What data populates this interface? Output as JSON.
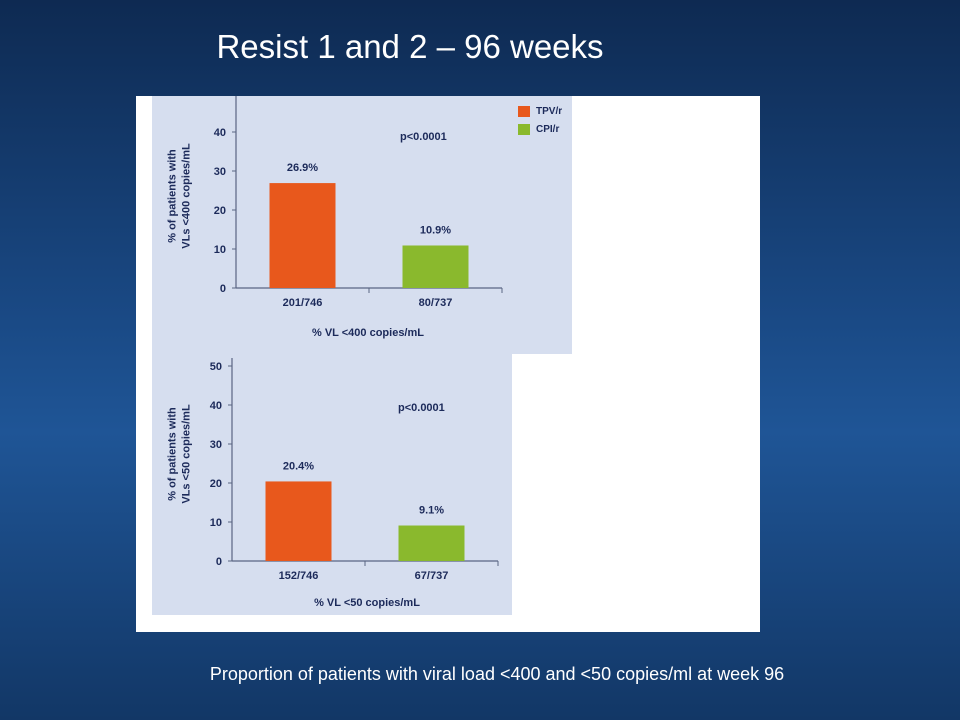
{
  "slide": {
    "title": "Resist 1 and 2 – 96 weeks",
    "caption": "Proportion of patients with viral load <400 and <50 copies/ml at week 96"
  },
  "colors": {
    "background": "#163f74",
    "chart_bg": "#d6deef",
    "tpv": "#e8581c",
    "cpi": "#8ab92d",
    "text_dark": "#1c2a5a"
  },
  "chart_data": [
    {
      "type": "bar",
      "categories": [
        "201/746",
        "80/737"
      ],
      "values": [
        26.9,
        10.9
      ],
      "value_labels": [
        "26.9%",
        "10.9%"
      ],
      "series_names": [
        "TPV/r",
        "CPI/r"
      ],
      "bar_colors": [
        "#e8581c",
        "#8ab92d"
      ],
      "ylabel_lines": [
        "% of patients with",
        "VLs <400 copies/mL"
      ],
      "xlabel": "% VL <400 copies/mL",
      "pvalue": "p<0.0001",
      "yticks": [
        0,
        10,
        20,
        30,
        40
      ],
      "ylim": [
        0,
        50
      ],
      "legend": [
        {
          "label": "TPV/r",
          "color": "#e8581c"
        },
        {
          "label": "CPI/r",
          "color": "#8ab92d"
        }
      ],
      "legend_position": "top-right",
      "grid": false
    },
    {
      "type": "bar",
      "categories": [
        "152/746",
        "67/737"
      ],
      "values": [
        20.4,
        9.1
      ],
      "value_labels": [
        "20.4%",
        "9.1%"
      ],
      "series_names": [
        "TPV/r",
        "CPI/r"
      ],
      "bar_colors": [
        "#e8581c",
        "#8ab92d"
      ],
      "ylabel_lines": [
        "% of patients with",
        "VLs <50 copies/mL"
      ],
      "xlabel": "% VL <50 copies/mL",
      "pvalue": "p<0.0001",
      "yticks": [
        0,
        10,
        20,
        30,
        40,
        50
      ],
      "ylim": [
        0,
        50
      ],
      "grid": false
    }
  ]
}
